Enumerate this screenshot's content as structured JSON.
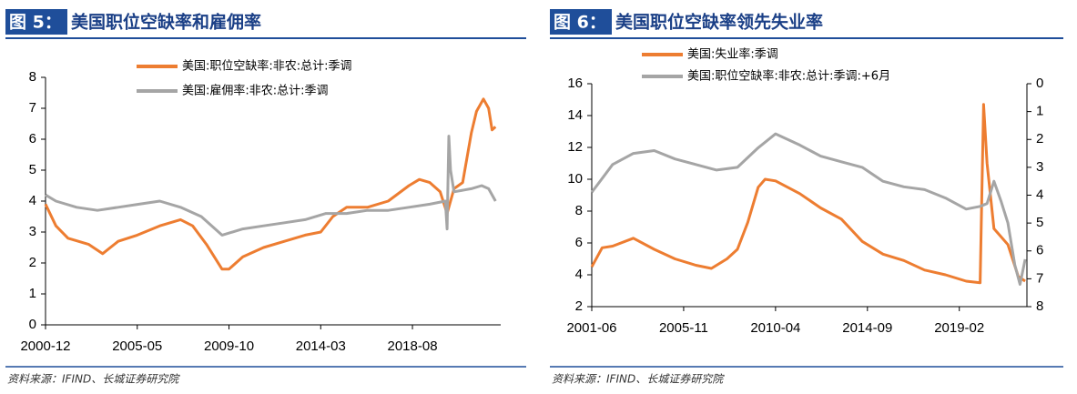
{
  "chart_data": [
    {
      "type": "line",
      "label": "图 5：",
      "title": "美国职位空缺率和雇佣率",
      "source": "资料来源：IFIND、长城证券研究院",
      "xlim": [
        "2000-12",
        "2022-11"
      ],
      "xticks": [
        "2000-12",
        "2005-05",
        "2009-10",
        "2014-03",
        "2018-08"
      ],
      "ylim": [
        0,
        8
      ],
      "yticks": [
        0,
        1,
        2,
        3,
        4,
        5,
        6,
        7,
        8
      ],
      "series": [
        {
          "name": "美国:职位空缺率:非农:总计:季调",
          "color": "#ed7d31",
          "x": [
            "2000-12",
            "2001-06",
            "2002-01",
            "2003-01",
            "2003-09",
            "2004-06",
            "2005-05",
            "2006-06",
            "2007-06",
            "2008-01",
            "2008-09",
            "2009-06",
            "2009-10",
            "2010-06",
            "2011-06",
            "2012-06",
            "2013-06",
            "2014-03",
            "2014-10",
            "2015-06",
            "2016-06",
            "2017-06",
            "2018-06",
            "2018-12",
            "2019-06",
            "2019-12",
            "2020-04",
            "2020-08",
            "2021-01",
            "2021-06",
            "2021-09",
            "2022-01",
            "2022-04",
            "2022-06",
            "2022-08"
          ],
          "values": [
            3.9,
            3.2,
            2.8,
            2.6,
            2.3,
            2.7,
            2.9,
            3.2,
            3.4,
            3.2,
            2.6,
            1.8,
            1.8,
            2.2,
            2.5,
            2.7,
            2.9,
            3.0,
            3.5,
            3.8,
            3.8,
            4.0,
            4.5,
            4.7,
            4.6,
            4.3,
            3.6,
            4.4,
            4.6,
            6.2,
            6.9,
            7.3,
            7.0,
            6.3,
            6.4
          ]
        },
        {
          "name": "美国:雇佣率:非农:总计:季调",
          "color": "#a5a5a5",
          "x": [
            "2000-12",
            "2001-06",
            "2002-06",
            "2003-06",
            "2004-06",
            "2005-06",
            "2006-06",
            "2007-06",
            "2008-06",
            "2009-06",
            "2010-06",
            "2011-06",
            "2012-06",
            "2013-06",
            "2014-06",
            "2015-06",
            "2016-06",
            "2017-06",
            "2018-06",
            "2019-06",
            "2020-03",
            "2020-04",
            "2020-05",
            "2020-06",
            "2020-08",
            "2021-06",
            "2021-12",
            "2022-04",
            "2022-08"
          ],
          "values": [
            4.2,
            4.0,
            3.8,
            3.7,
            3.8,
            3.9,
            4.0,
            3.8,
            3.5,
            2.9,
            3.1,
            3.2,
            3.3,
            3.4,
            3.6,
            3.6,
            3.7,
            3.7,
            3.8,
            3.9,
            4.0,
            3.1,
            6.1,
            5.0,
            4.3,
            4.4,
            4.5,
            4.4,
            4.0
          ]
        }
      ]
    },
    {
      "type": "line",
      "label": "图 6：",
      "title": "美国职位空缺率领先失业率",
      "source": "资料来源：IFIND、长城证券研究院",
      "xlim": [
        "2001-06",
        "2022-05"
      ],
      "xticks": [
        "2001-06",
        "2005-11",
        "2010-04",
        "2014-09",
        "2019-02"
      ],
      "ylim": [
        2,
        16
      ],
      "yticks": [
        2,
        4,
        6,
        8,
        10,
        12,
        14,
        16
      ],
      "y2lim": [
        8,
        0
      ],
      "y2ticks": [
        0,
        1,
        2,
        3,
        4,
        5,
        6,
        7,
        8
      ],
      "series": [
        {
          "name": "美国:失业率:季调",
          "color": "#ed7d31",
          "x": [
            "2001-06",
            "2001-12",
            "2002-06",
            "2003-06",
            "2004-06",
            "2005-06",
            "2006-06",
            "2007-03",
            "2007-12",
            "2008-06",
            "2008-12",
            "2009-06",
            "2009-10",
            "2010-04",
            "2011-06",
            "2012-06",
            "2013-06",
            "2014-06",
            "2015-06",
            "2016-06",
            "2017-06",
            "2018-06",
            "2019-06",
            "2020-02",
            "2020-04",
            "2020-06",
            "2020-10",
            "2021-06",
            "2021-12",
            "2022-04"
          ],
          "values": [
            4.5,
            5.7,
            5.8,
            6.3,
            5.6,
            5.0,
            4.6,
            4.4,
            5.0,
            5.6,
            7.3,
            9.5,
            10.0,
            9.9,
            9.1,
            8.2,
            7.5,
            6.1,
            5.3,
            4.9,
            4.3,
            4.0,
            3.6,
            3.5,
            14.7,
            11.0,
            6.9,
            5.9,
            3.9,
            3.6
          ]
        },
        {
          "name": "美国:职位空缺率:非农:总计:季调:+6月",
          "color": "#a5a5a5",
          "axis": "y2",
          "x": [
            "2001-06",
            "2002-06",
            "2003-06",
            "2004-06",
            "2005-06",
            "2006-06",
            "2007-06",
            "2008-06",
            "2009-06",
            "2010-04",
            "2011-06",
            "2012-06",
            "2013-06",
            "2014-06",
            "2015-06",
            "2016-06",
            "2017-06",
            "2018-06",
            "2019-06",
            "2020-02",
            "2020-06",
            "2020-10",
            "2021-02",
            "2021-06",
            "2021-10",
            "2022-01",
            "2022-04"
          ],
          "values": [
            3.9,
            2.9,
            2.5,
            2.4,
            2.7,
            2.9,
            3.1,
            3.0,
            2.3,
            1.8,
            2.2,
            2.6,
            2.8,
            3.0,
            3.5,
            3.7,
            3.8,
            4.1,
            4.5,
            4.4,
            4.3,
            3.5,
            4.2,
            5.0,
            6.5,
            7.2,
            6.3
          ]
        }
      ]
    }
  ]
}
